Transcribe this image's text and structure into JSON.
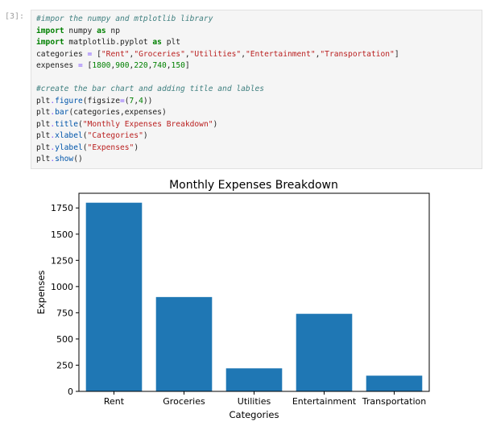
{
  "cell": {
    "prompt": "[3]:",
    "code_lines": [
      [
        {
          "t": "comment",
          "v": "#impor the numpy and mtplotlib library"
        }
      ],
      [
        {
          "t": "kw",
          "v": "import"
        },
        {
          "t": "name",
          "v": " numpy "
        },
        {
          "t": "kw",
          "v": "as"
        },
        {
          "t": "name",
          "v": " np"
        }
      ],
      [
        {
          "t": "kw",
          "v": "import"
        },
        {
          "t": "name",
          "v": " matplotlib.pyplot "
        },
        {
          "t": "kw",
          "v": "as"
        },
        {
          "t": "name",
          "v": " plt"
        }
      ],
      [
        {
          "t": "name",
          "v": "categories "
        },
        {
          "t": "op",
          "v": "="
        },
        {
          "t": "name",
          "v": " ["
        },
        {
          "t": "str",
          "v": "\"Rent\""
        },
        {
          "t": "name",
          "v": ","
        },
        {
          "t": "str",
          "v": "\"Groceries\""
        },
        {
          "t": "name",
          "v": ","
        },
        {
          "t": "str",
          "v": "\"Utilities\""
        },
        {
          "t": "name",
          "v": ","
        },
        {
          "t": "str",
          "v": "\"Entertainment\""
        },
        {
          "t": "name",
          "v": ","
        },
        {
          "t": "str",
          "v": "\"Transportation\""
        },
        {
          "t": "name",
          "v": "]"
        }
      ],
      [
        {
          "t": "name",
          "v": "expenses "
        },
        {
          "t": "op",
          "v": "="
        },
        {
          "t": "name",
          "v": " ["
        },
        {
          "t": "num",
          "v": "1800"
        },
        {
          "t": "name",
          "v": ","
        },
        {
          "t": "num",
          "v": "900"
        },
        {
          "t": "name",
          "v": ","
        },
        {
          "t": "num",
          "v": "220"
        },
        {
          "t": "name",
          "v": ","
        },
        {
          "t": "num",
          "v": "740"
        },
        {
          "t": "name",
          "v": ","
        },
        {
          "t": "num",
          "v": "150"
        },
        {
          "t": "name",
          "v": "]"
        }
      ],
      [],
      [
        {
          "t": "comment",
          "v": "#create the bar chart and adding title and lables"
        }
      ],
      [
        {
          "t": "name",
          "v": "plt"
        },
        {
          "t": "op",
          "v": "."
        },
        {
          "t": "func",
          "v": "figure"
        },
        {
          "t": "name",
          "v": "(figsize"
        },
        {
          "t": "op",
          "v": "="
        },
        {
          "t": "name",
          "v": "("
        },
        {
          "t": "num",
          "v": "7"
        },
        {
          "t": "name",
          "v": ","
        },
        {
          "t": "num",
          "v": "4"
        },
        {
          "t": "name",
          "v": "))"
        }
      ],
      [
        {
          "t": "name",
          "v": "plt"
        },
        {
          "t": "op",
          "v": "."
        },
        {
          "t": "func",
          "v": "bar"
        },
        {
          "t": "name",
          "v": "(categories,expenses)"
        }
      ],
      [
        {
          "t": "name",
          "v": "plt"
        },
        {
          "t": "op",
          "v": "."
        },
        {
          "t": "func",
          "v": "title"
        },
        {
          "t": "name",
          "v": "("
        },
        {
          "t": "str",
          "v": "\"Monthly Expenses Breakdown\""
        },
        {
          "t": "name",
          "v": ")"
        }
      ],
      [
        {
          "t": "name",
          "v": "plt"
        },
        {
          "t": "op",
          "v": "."
        },
        {
          "t": "func",
          "v": "xlabel"
        },
        {
          "t": "name",
          "v": "("
        },
        {
          "t": "str",
          "v": "\"Categories\""
        },
        {
          "t": "name",
          "v": ")"
        }
      ],
      [
        {
          "t": "name",
          "v": "plt"
        },
        {
          "t": "op",
          "v": "."
        },
        {
          "t": "func",
          "v": "ylabel"
        },
        {
          "t": "name",
          "v": "("
        },
        {
          "t": "str",
          "v": "\"Expenses\""
        },
        {
          "t": "name",
          "v": ")"
        }
      ],
      [
        {
          "t": "name",
          "v": "plt"
        },
        {
          "t": "op",
          "v": "."
        },
        {
          "t": "func",
          "v": "show"
        },
        {
          "t": "name",
          "v": "()"
        }
      ]
    ]
  },
  "colors": {
    "bar": "#1f77b4",
    "axis": "#000000"
  },
  "chart_data": {
    "type": "bar",
    "title": "Monthly Expenses Breakdown",
    "xlabel": "Categories",
    "ylabel": "Expenses",
    "categories": [
      "Rent",
      "Groceries",
      "Utilities",
      "Entertainment",
      "Transportation"
    ],
    "values": [
      1800,
      900,
      220,
      740,
      150
    ],
    "ylim": [
      0,
      1890
    ],
    "yticks": [
      0,
      250,
      500,
      750,
      1000,
      1250,
      1500,
      1750
    ],
    "grid": false
  }
}
